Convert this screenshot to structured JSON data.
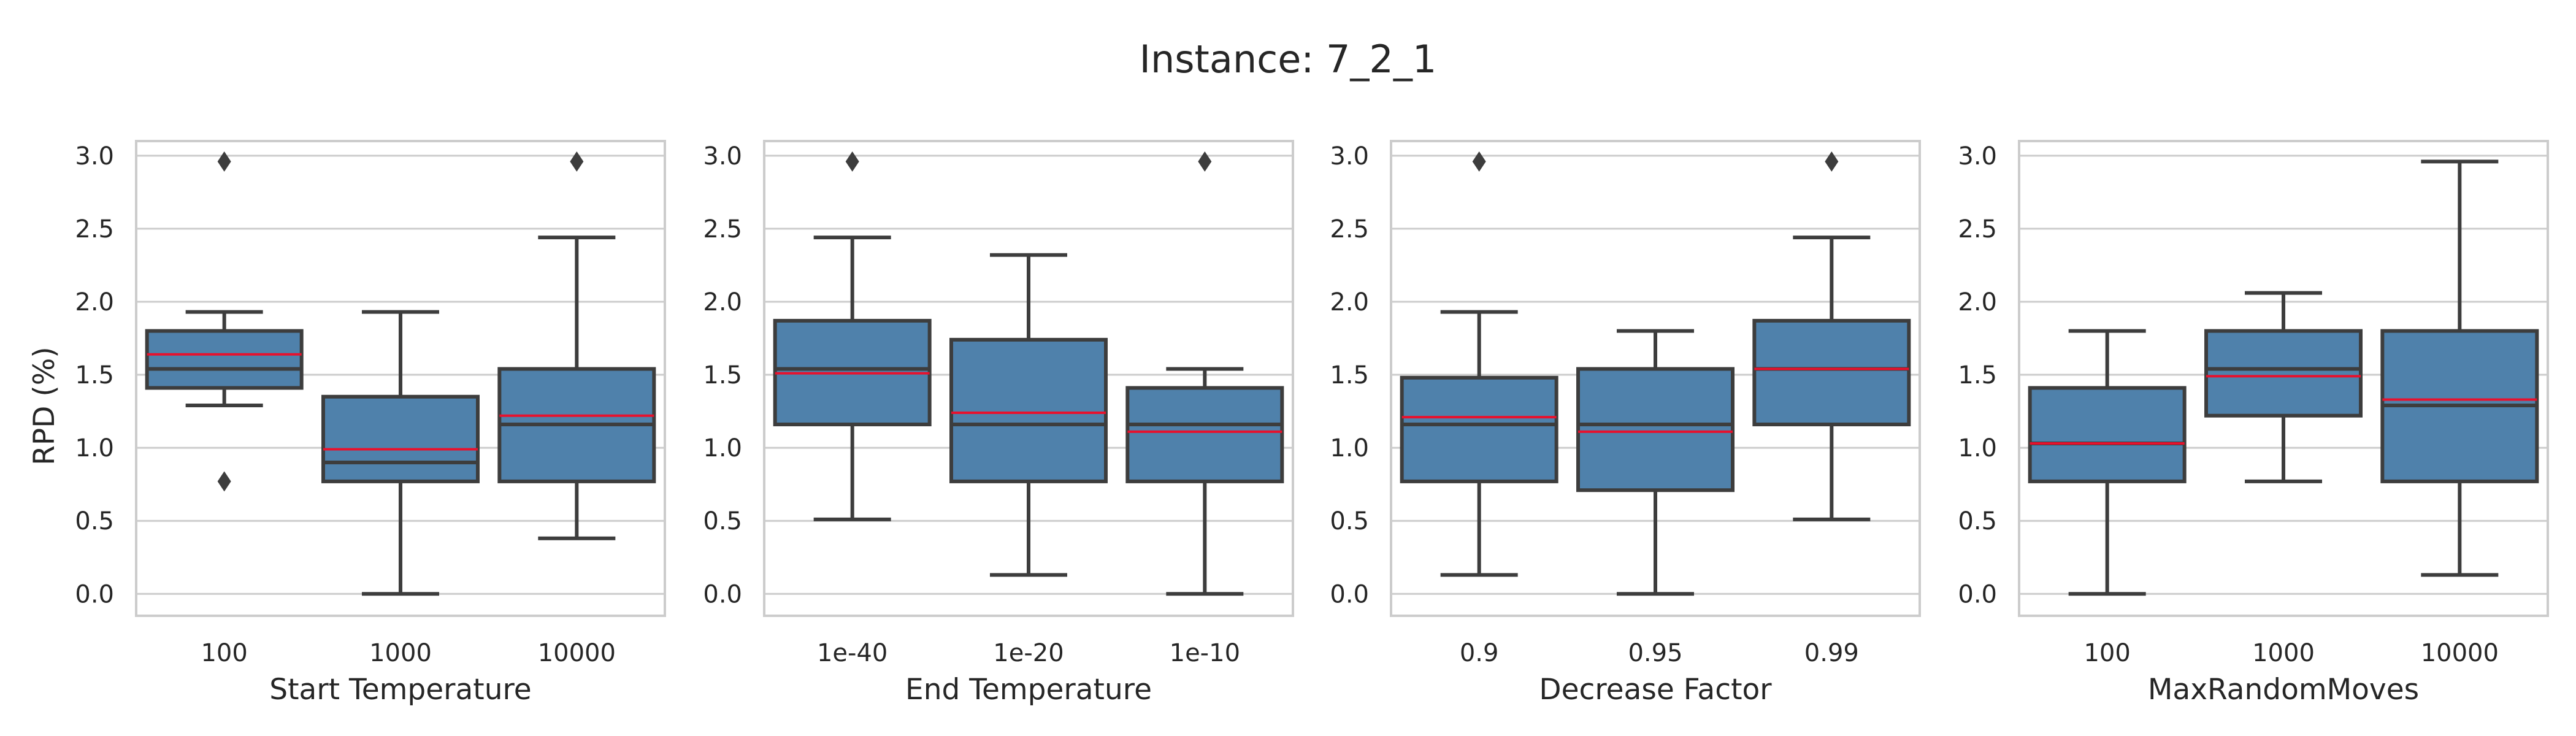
{
  "chart_data": {
    "type": "box",
    "title": "Instance: 7_2_1",
    "ylabel": "RPD (%)",
    "ylim": [
      -0.15,
      3.1
    ],
    "yticks": [
      "0.0",
      "0.5",
      "1.0",
      "1.5",
      "2.0",
      "2.5",
      "3.0"
    ],
    "grid": true,
    "colors": {
      "box": "#4f81ab",
      "box_edge": "#3d3d3d",
      "mean_line": "#e8112d",
      "grid": "#cccccc"
    },
    "panels": [
      {
        "xlabel": "Start Temperature",
        "categories": [
          "100",
          "1000",
          "10000"
        ],
        "boxes": [
          {
            "whisker_low": 1.29,
            "q1": 1.41,
            "median": 1.54,
            "mean": 1.64,
            "q3": 1.8,
            "whisker_high": 1.93,
            "outliers": [
              2.96,
              0.77
            ]
          },
          {
            "whisker_low": 0.0,
            "q1": 0.77,
            "median": 0.9,
            "mean": 0.99,
            "q3": 1.35,
            "whisker_high": 1.93,
            "outliers": []
          },
          {
            "whisker_low": 0.38,
            "q1": 0.77,
            "median": 1.16,
            "mean": 1.22,
            "q3": 1.54,
            "whisker_high": 2.44,
            "outliers": [
              2.96
            ]
          }
        ]
      },
      {
        "xlabel": "End Temperature",
        "categories": [
          "1e-40",
          "1e-20",
          "1e-10"
        ],
        "boxes": [
          {
            "whisker_low": 0.51,
            "q1": 1.16,
            "median": 1.54,
            "mean": 1.51,
            "q3": 1.87,
            "whisker_high": 2.44,
            "outliers": [
              2.96
            ]
          },
          {
            "whisker_low": 0.13,
            "q1": 0.77,
            "median": 1.16,
            "mean": 1.24,
            "q3": 1.74,
            "whisker_high": 2.32,
            "outliers": []
          },
          {
            "whisker_low": 0.0,
            "q1": 0.77,
            "median": 1.16,
            "mean": 1.11,
            "q3": 1.41,
            "whisker_high": 1.54,
            "outliers": [
              2.96
            ]
          }
        ]
      },
      {
        "xlabel": "Decrease Factor",
        "categories": [
          "0.9",
          "0.95",
          "0.99"
        ],
        "boxes": [
          {
            "whisker_low": 0.13,
            "q1": 0.77,
            "median": 1.16,
            "mean": 1.21,
            "q3": 1.48,
            "whisker_high": 1.93,
            "outliers": [
              2.96
            ]
          },
          {
            "whisker_low": 0.0,
            "q1": 0.71,
            "median": 1.16,
            "mean": 1.11,
            "q3": 1.54,
            "whisker_high": 1.8,
            "outliers": []
          },
          {
            "whisker_low": 0.51,
            "q1": 1.16,
            "median": 1.54,
            "mean": 1.54,
            "q3": 1.87,
            "whisker_high": 2.44,
            "outliers": [
              2.96
            ]
          }
        ]
      },
      {
        "xlabel": "MaxRandomMoves",
        "categories": [
          "100",
          "1000",
          "10000"
        ],
        "boxes": [
          {
            "whisker_low": 0.0,
            "q1": 0.77,
            "median": 1.03,
            "mean": 1.03,
            "q3": 1.41,
            "whisker_high": 1.8,
            "outliers": []
          },
          {
            "whisker_low": 0.77,
            "q1": 1.22,
            "median": 1.54,
            "mean": 1.49,
            "q3": 1.8,
            "whisker_high": 2.06,
            "outliers": []
          },
          {
            "whisker_low": 0.13,
            "q1": 0.77,
            "median": 1.29,
            "mean": 1.33,
            "q3": 1.8,
            "whisker_high": 2.96,
            "outliers": []
          }
        ]
      }
    ]
  }
}
